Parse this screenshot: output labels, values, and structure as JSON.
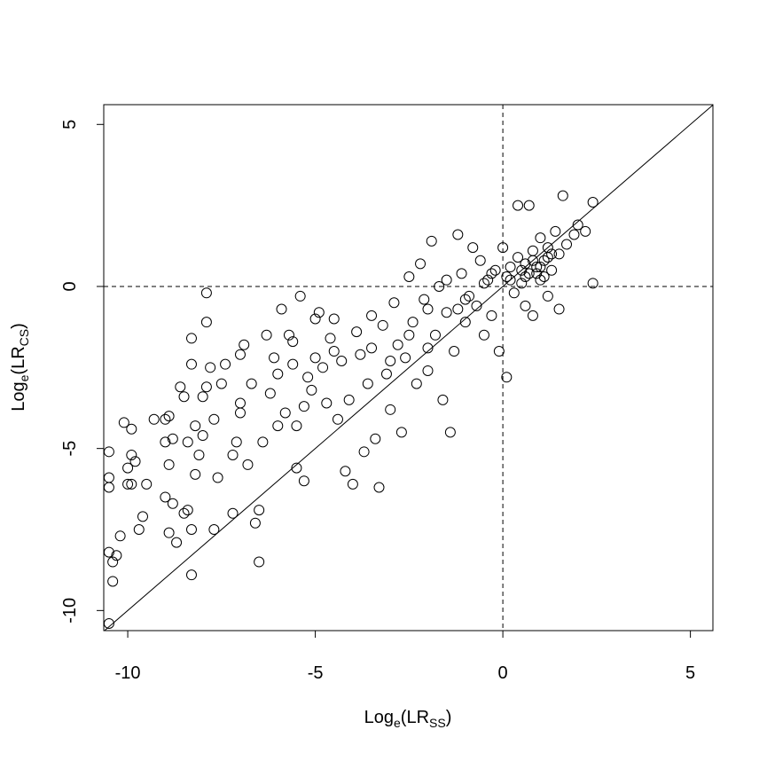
{
  "chart_data": {
    "type": "scatter",
    "x_label": {
      "base": "Log",
      "sub1": "e",
      "mid": "(LR",
      "sub2": "SS",
      "end": ")"
    },
    "y_label": {
      "base": "Log",
      "sub1": "e",
      "mid": "(LR",
      "sub2": "CS",
      "end": ")"
    },
    "xlim": [
      -10.64,
      5.6
    ],
    "ylim": [
      -10.62,
      5.61
    ],
    "xticks": [
      -10,
      -5,
      0,
      5
    ],
    "yticks": [
      -10,
      -5,
      0,
      5
    ],
    "hlines": [
      0
    ],
    "vlines": [
      0
    ],
    "abline": {
      "intercept": 0,
      "slope": 1
    },
    "marker_color": "#000000",
    "x": [
      -10.5,
      -10.4,
      -10.4,
      -10.5,
      -10.3,
      -10.2,
      -10.5,
      -10.5,
      -10.5,
      -10.1,
      -9.9,
      -10,
      -9.9,
      -9.8,
      -10,
      -9.9,
      -9.6,
      -9.7,
      -9.5,
      -9.3,
      -9,
      -8.9,
      -8.8,
      -8.9,
      -9,
      -8.8,
      -8.9,
      -8.7,
      -8.5,
      -8.6,
      -8.5,
      -8.4,
      -8.2,
      -8.3,
      -8.3,
      -8.4,
      -8.3,
      -8.3,
      -8.2,
      -8.1,
      -8,
      -7.9,
      -7.9,
      -7.9,
      -7.8,
      -7.7,
      -7.6,
      -7.7,
      -7.5,
      -7.4,
      -7.2,
      -7.2,
      -7.1,
      -7,
      -7,
      -6.9,
      -6.8,
      -6.7,
      -6.6,
      -6.5,
      -6.5,
      -6.4,
      -6.3,
      -6.2,
      -6.1,
      -6,
      -5.9,
      -5.8,
      -5.7,
      -5.6,
      -5.6,
      -5.5,
      -5.5,
      -5.4,
      -5.3,
      -5.3,
      -5.2,
      -5.1,
      -5,
      -4.9,
      -4.8,
      -4.7,
      -4.6,
      -4.5,
      -4.4,
      -4.3,
      -4.2,
      -4.1,
      -4,
      -3.9,
      -3.8,
      -3.7,
      -3.6,
      -3.5,
      -3.4,
      -3.3,
      -3.2,
      -3.1,
      -3,
      -2.9,
      -2.8,
      -2.7,
      -2.6,
      -2.5,
      -2.4,
      -2.3,
      -2.2,
      -2.1,
      -2,
      -1.9,
      -1.8,
      -1.7,
      -1.6,
      -1.5,
      -1.4,
      -1.3,
      -1.2,
      -1.1,
      -1,
      -0.9,
      -0.8,
      -0.7,
      -0.6,
      -0.5,
      -0.4,
      -0.3,
      -0.2,
      -0.1,
      0,
      0.1,
      0.1,
      0.2,
      0.3,
      0.4,
      0.4,
      0.5,
      0.6,
      0.6,
      0.7,
      0.7,
      0.8,
      0.8,
      0.9,
      1,
      1,
      1.1,
      1.2,
      1.2,
      1.3,
      1.4,
      1.5,
      1.5,
      1.6,
      1.7,
      1.9,
      2,
      2.2,
      2.4,
      2.4,
      -2,
      -1.5,
      -1,
      -0.5,
      0.2,
      0.5,
      0.9,
      1.1,
      1.3,
      -3.5,
      -4.5,
      -5,
      -6,
      -7,
      -8,
      -9,
      -3,
      -2.5,
      -2,
      -1.2,
      -0.3,
      0.6,
      0.8,
      1,
      1.2
    ],
    "y": [
      -10.4,
      -9.1,
      -8.5,
      -8.2,
      -8.3,
      -7.7,
      -6.2,
      -5.9,
      -5.1,
      -4.2,
      -4.4,
      -5.6,
      -5.2,
      -5.4,
      -6.1,
      -6.1,
      -7.1,
      -7.5,
      -6.1,
      -4.1,
      -4.1,
      -4,
      -4.7,
      -5.5,
      -6.5,
      -6.7,
      -7.6,
      -7.9,
      -7,
      -3.1,
      -3.4,
      -4.8,
      -4.3,
      -1.6,
      -2.4,
      -6.9,
      -7.5,
      -8.9,
      -5.8,
      -5.2,
      -3.4,
      -3.1,
      -0.2,
      -1.1,
      -2.5,
      -4.1,
      -5.9,
      -7.5,
      -3,
      -2.4,
      -5.2,
      -7,
      -4.8,
      -3.6,
      -2.1,
      -1.8,
      -5.5,
      -3,
      -7.3,
      -8.5,
      -6.9,
      -4.8,
      -1.5,
      -3.3,
      -2.2,
      -4.3,
      -0.7,
      -3.9,
      -1.5,
      -1.7,
      -2.4,
      -5.6,
      -4.3,
      -0.3,
      -3.7,
      -6,
      -2.8,
      -3.2,
      -1,
      -0.8,
      -2.5,
      -3.6,
      -1.6,
      -1,
      -4.1,
      -2.3,
      -5.7,
      -3.5,
      -6.1,
      -1.4,
      -2.1,
      -5.1,
      -3,
      -1.9,
      -4.7,
      -6.2,
      -1.2,
      -2.7,
      -3.8,
      -0.5,
      -1.8,
      -4.5,
      -2.2,
      0.3,
      -1.1,
      -3,
      0.7,
      -0.4,
      -2.6,
      1.4,
      -1.5,
      0,
      -3.5,
      -0.8,
      -4.5,
      -2,
      1.6,
      0.4,
      -1.1,
      -0.3,
      1.2,
      -0.6,
      0.8,
      -1.5,
      0.2,
      -0.9,
      0.5,
      -2,
      1.2,
      -2.8,
      0.3,
      0.6,
      -0.2,
      0.9,
      2.5,
      0.1,
      0.7,
      -0.6,
      2.5,
      0.4,
      1.1,
      -0.9,
      0.6,
      0.2,
      1.5,
      0.8,
      -0.3,
      1.2,
      0.5,
      1.7,
      1,
      -0.7,
      2.8,
      1.3,
      1.6,
      1.9,
      1.7,
      2.6,
      0.1,
      -0.7,
      0.2,
      -0.4,
      0.1,
      0.2,
      0.5,
      0.4,
      0.3,
      1,
      -0.9,
      -2,
      -2.2,
      -2.7,
      -3.9,
      -4.6,
      -4.8,
      -2.3,
      -1.5,
      -1.9,
      -0.7,
      0.4,
      0.3,
      0.8,
      0.6,
      0.9
    ]
  }
}
